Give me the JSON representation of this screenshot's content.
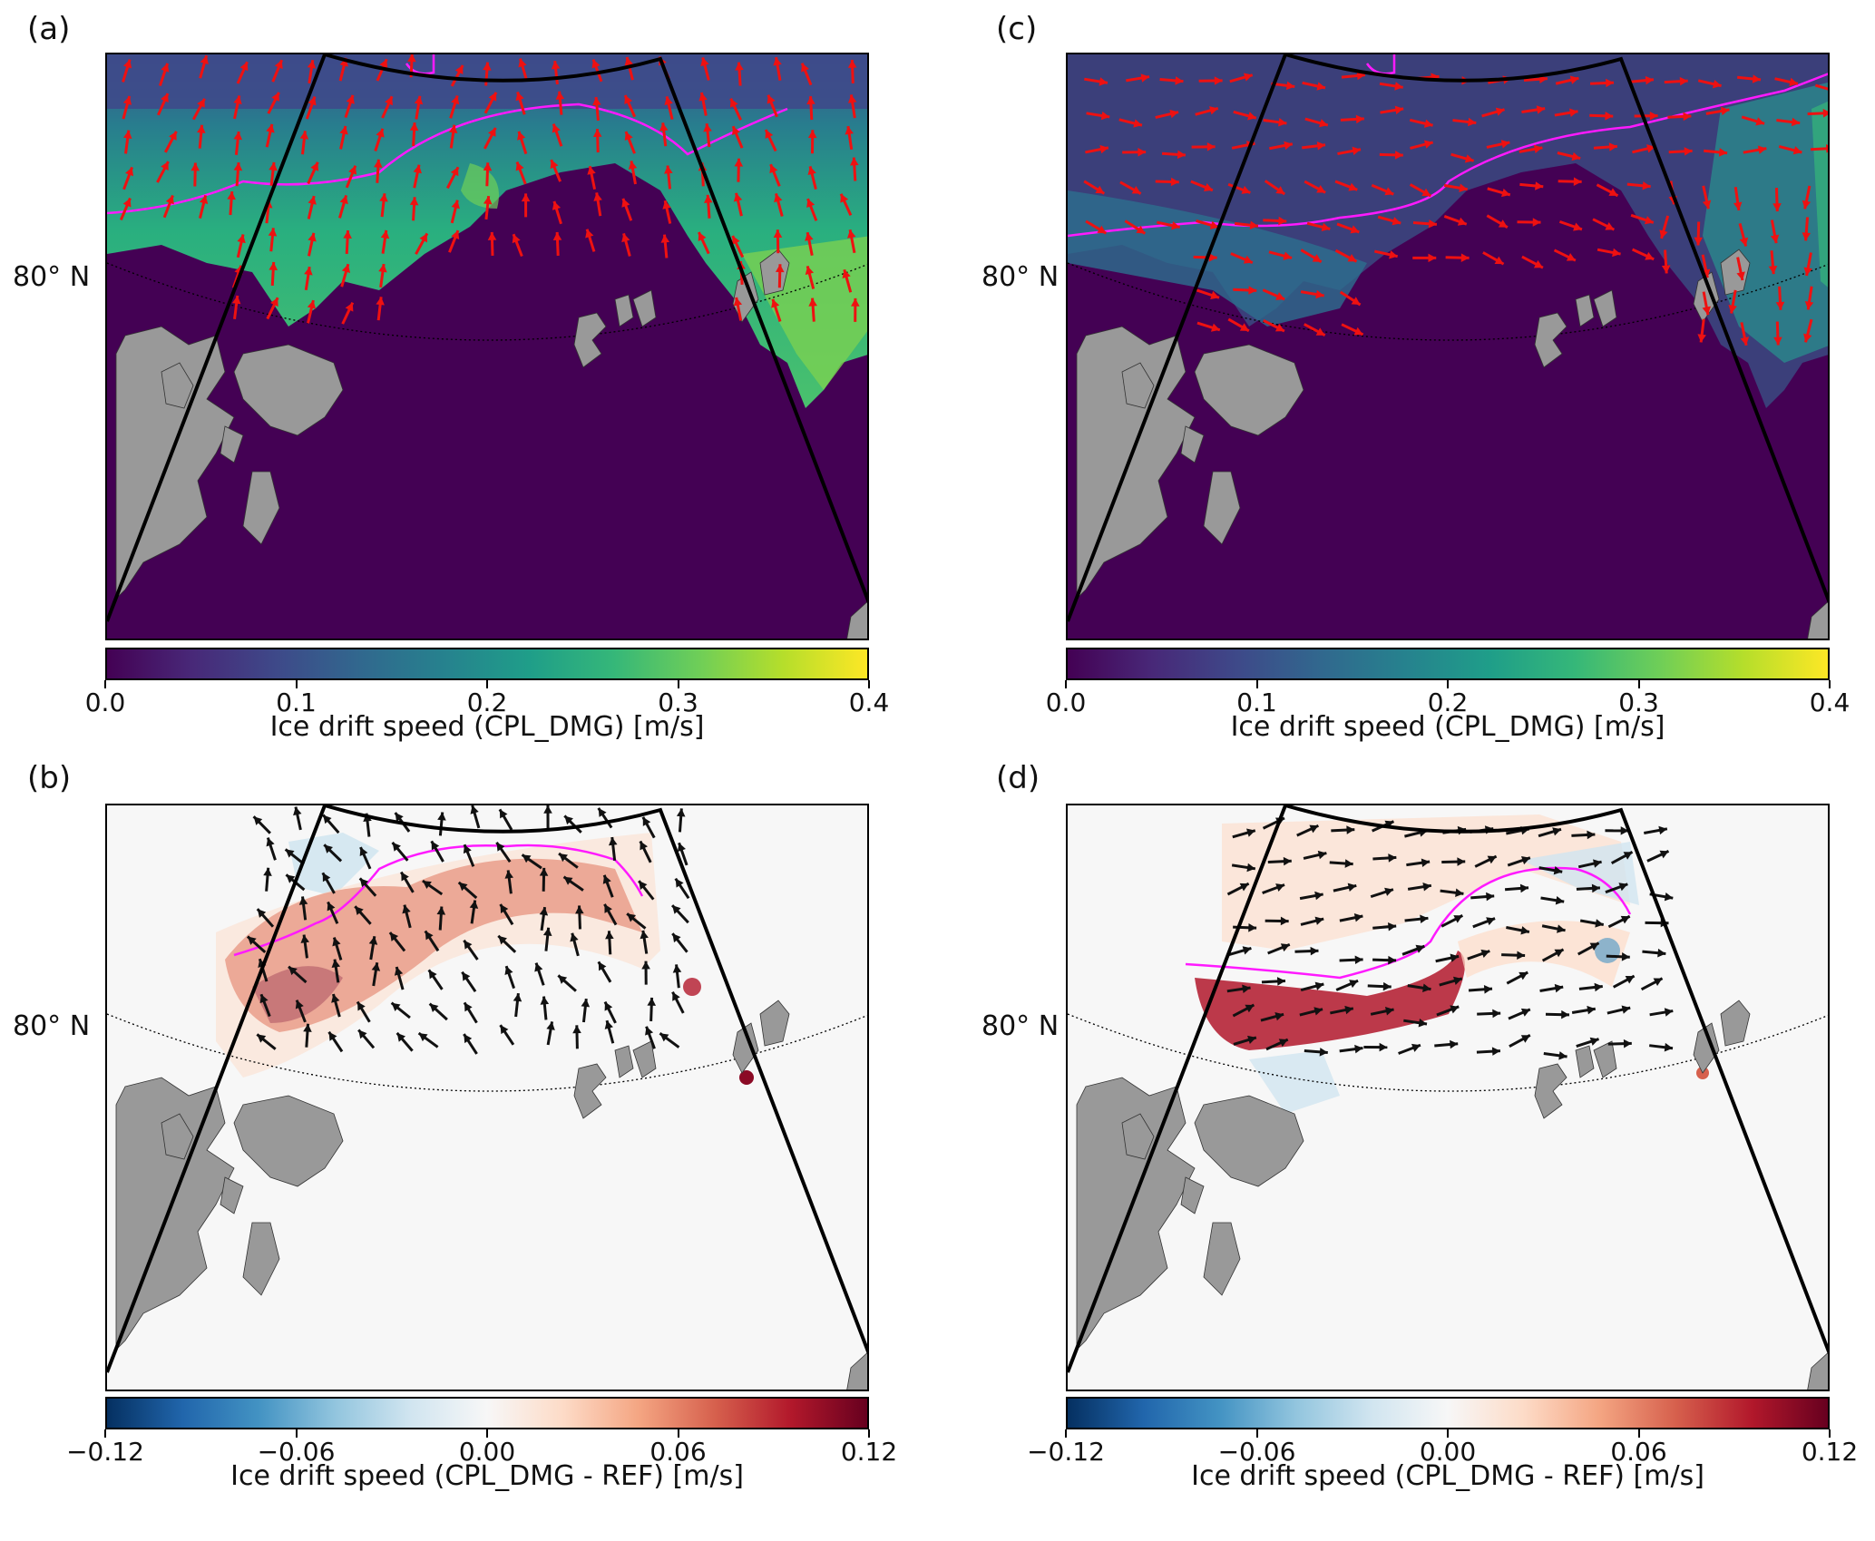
{
  "panels": [
    {
      "id": "a",
      "label": "(a)"
    },
    {
      "id": "b",
      "label": "(b)"
    },
    {
      "id": "c",
      "label": "(c)"
    },
    {
      "id": "d",
      "label": "(d)"
    }
  ],
  "latitude_label": "80° N",
  "colorbars": {
    "speed": {
      "label": "Ice drift speed (CPL_DMG) [m/s]",
      "ticks": [
        "0.0",
        "0.1",
        "0.2",
        "0.3",
        "0.4"
      ],
      "range": [
        0.0,
        0.4
      ],
      "colormap": "viridis"
    },
    "diff": {
      "label": "Ice drift speed (CPL_DMG - REF) [m/s]",
      "ticks": [
        "−0.12",
        "−0.06",
        "0.00",
        "0.06",
        "0.12"
      ],
      "range": [
        -0.12,
        0.12
      ],
      "colormap": "RdBu_r"
    }
  },
  "colors": {
    "land": "#999999",
    "ice_edge_contour": "#ff1aff",
    "vectors_speed": "#ee1111",
    "vectors_diff": "#111111",
    "domain_boundary": "#000000",
    "no_ice_speed": "#440154",
    "no_diff": "#f7f7f7"
  }
}
